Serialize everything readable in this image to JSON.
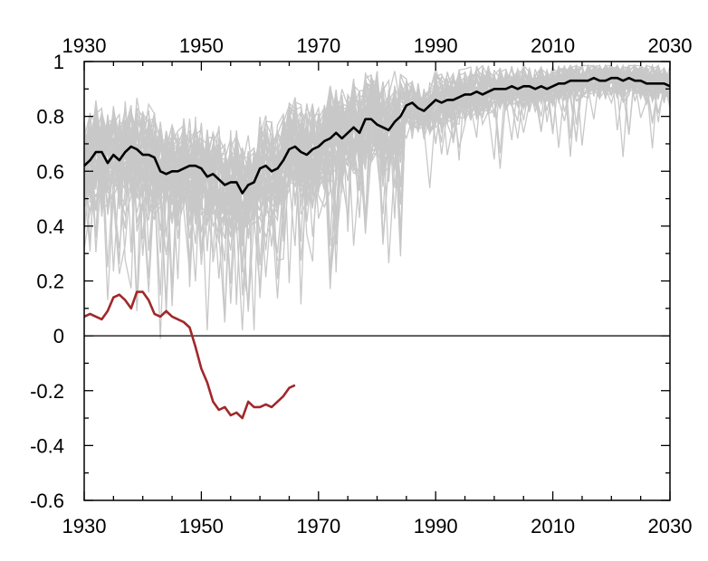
{
  "chart_data": {
    "type": "line",
    "title": "",
    "xlabel": "",
    "ylabel": "",
    "xlim": [
      1930,
      2030
    ],
    "ylim": [
      -0.6,
      1
    ],
    "x_ticks": [
      "1930",
      "1950",
      "1970",
      "1990",
      "2010",
      "2030"
    ],
    "y_ticks": [
      "-0.6",
      "-0.4",
      "-0.2",
      "0",
      "0.2",
      "0.4",
      "0.6",
      "0.8",
      "1"
    ],
    "grid": false,
    "legend": "none",
    "zero_line": true,
    "colors": {
      "ensemble": "#c8c8c8",
      "mean": "#000000",
      "observed": "#a0282a",
      "axis": "#000000"
    },
    "ensemble_count": 50,
    "series": [
      {
        "role": "ensemble-mean",
        "x": [
          1930,
          1931,
          1932,
          1933,
          1934,
          1935,
          1936,
          1937,
          1938,
          1939,
          1940,
          1941,
          1942,
          1943,
          1944,
          1945,
          1946,
          1947,
          1948,
          1949,
          1950,
          1951,
          1952,
          1953,
          1954,
          1955,
          1956,
          1957,
          1958,
          1959,
          1960,
          1961,
          1962,
          1963,
          1964,
          1965,
          1966,
          1967,
          1968,
          1969,
          1970,
          1971,
          1972,
          1973,
          1974,
          1975,
          1976,
          1977,
          1978,
          1979,
          1980,
          1981,
          1982,
          1983,
          1984,
          1985,
          1986,
          1987,
          1988,
          1989,
          1990,
          1991,
          1992,
          1993,
          1994,
          1995,
          1996,
          1997,
          1998,
          1999,
          2000,
          2001,
          2002,
          2003,
          2004,
          2005,
          2006,
          2007,
          2008,
          2009,
          2010,
          2011,
          2012,
          2013,
          2014,
          2015,
          2016,
          2017,
          2018,
          2019,
          2020,
          2021,
          2022,
          2023,
          2024,
          2025,
          2026,
          2027,
          2028,
          2029,
          2030
        ],
        "values": [
          0.62,
          0.64,
          0.67,
          0.67,
          0.63,
          0.66,
          0.64,
          0.67,
          0.69,
          0.68,
          0.66,
          0.66,
          0.65,
          0.6,
          0.59,
          0.6,
          0.6,
          0.61,
          0.62,
          0.62,
          0.61,
          0.58,
          0.59,
          0.57,
          0.55,
          0.56,
          0.56,
          0.52,
          0.55,
          0.56,
          0.61,
          0.62,
          0.6,
          0.61,
          0.64,
          0.68,
          0.69,
          0.67,
          0.66,
          0.68,
          0.69,
          0.71,
          0.72,
          0.74,
          0.72,
          0.74,
          0.76,
          0.74,
          0.79,
          0.79,
          0.77,
          0.76,
          0.75,
          0.78,
          0.8,
          0.84,
          0.85,
          0.83,
          0.82,
          0.84,
          0.86,
          0.85,
          0.86,
          0.86,
          0.87,
          0.88,
          0.88,
          0.89,
          0.88,
          0.89,
          0.9,
          0.9,
          0.9,
          0.91,
          0.9,
          0.91,
          0.91,
          0.9,
          0.91,
          0.9,
          0.91,
          0.92,
          0.92,
          0.93,
          0.93,
          0.93,
          0.93,
          0.94,
          0.93,
          0.93,
          0.94,
          0.94,
          0.93,
          0.94,
          0.93,
          0.93,
          0.92,
          0.92,
          0.92,
          0.92,
          0.91
        ]
      },
      {
        "role": "observed",
        "x": [
          1930,
          1931,
          1932,
          1933,
          1934,
          1935,
          1936,
          1937,
          1938,
          1939,
          1940,
          1941,
          1942,
          1943,
          1944,
          1945,
          1946,
          1947,
          1948,
          1949,
          1950,
          1951,
          1952,
          1953,
          1954,
          1955,
          1956,
          1957,
          1958,
          1959,
          1960,
          1961,
          1962,
          1963,
          1964,
          1965,
          1966
        ],
        "values": [
          0.07,
          0.08,
          0.07,
          0.06,
          0.09,
          0.14,
          0.15,
          0.13,
          0.1,
          0.16,
          0.16,
          0.13,
          0.08,
          0.07,
          0.09,
          0.07,
          0.06,
          0.05,
          0.03,
          -0.04,
          -0.12,
          -0.17,
          -0.24,
          -0.27,
          -0.26,
          -0.29,
          -0.28,
          -0.3,
          -0.24,
          -0.26,
          -0.26,
          -0.25,
          -0.26,
          -0.24,
          -0.22,
          -0.19,
          -0.18
        ]
      }
    ]
  }
}
